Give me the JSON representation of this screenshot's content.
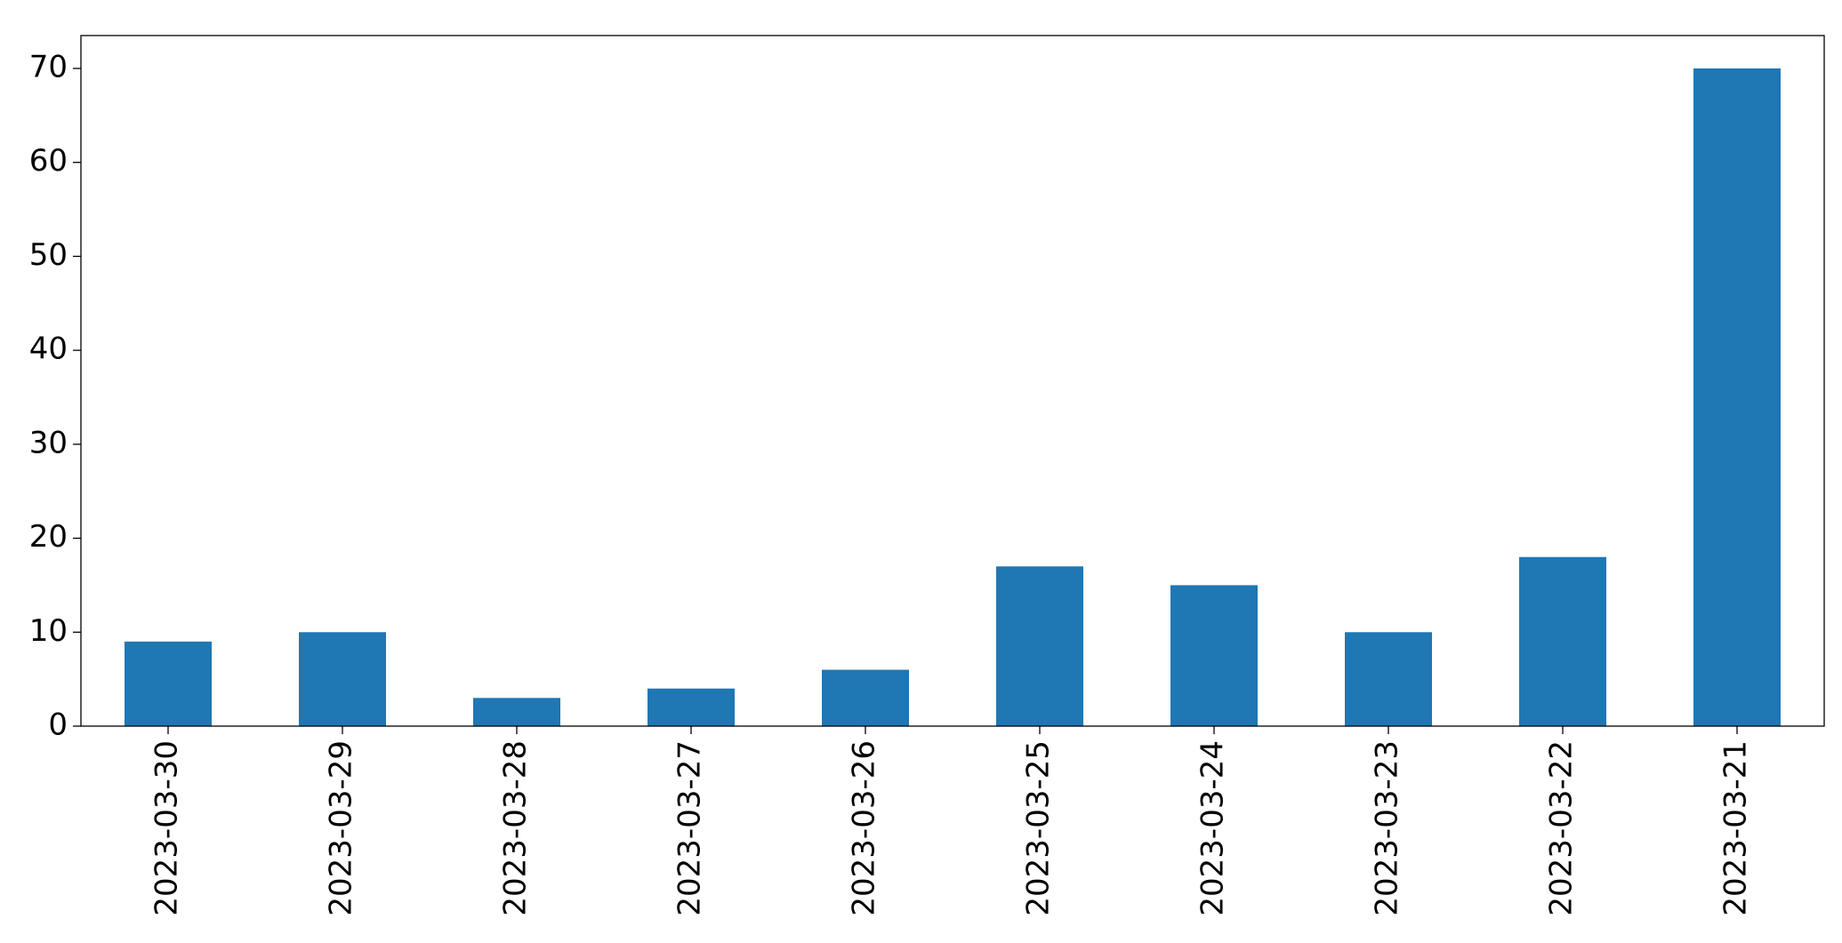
{
  "chart_data": {
    "type": "bar",
    "categories": [
      "2023-03-30",
      "2023-03-29",
      "2023-03-28",
      "2023-03-27",
      "2023-03-26",
      "2023-03-25",
      "2023-03-24",
      "2023-03-23",
      "2023-03-22",
      "2023-03-21"
    ],
    "values": [
      9,
      10,
      3,
      4,
      6,
      17,
      15,
      10,
      18,
      70
    ],
    "color": "#1f77b4",
    "ylim": [
      0,
      73.5
    ],
    "yticks": [
      0,
      10,
      20,
      30,
      40,
      50,
      60,
      70
    ],
    "grid": false
  }
}
